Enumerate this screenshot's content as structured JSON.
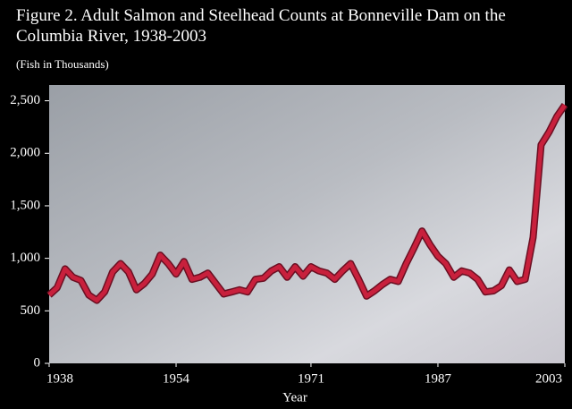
{
  "chart_data": {
    "type": "line",
    "title": "Figure 2. Adult Salmon and Steelhead Counts at Bonneville Dam on the Columbia River, 1938-2003",
    "subtitle": "(Fish in Thousands)",
    "x_label": "Year",
    "x": [
      1938,
      1939,
      1940,
      1941,
      1942,
      1943,
      1944,
      1945,
      1946,
      1947,
      1948,
      1949,
      1950,
      1951,
      1952,
      1953,
      1954,
      1955,
      1956,
      1957,
      1958,
      1959,
      1960,
      1961,
      1962,
      1963,
      1964,
      1965,
      1966,
      1967,
      1968,
      1969,
      1970,
      1971,
      1972,
      1973,
      1974,
      1975,
      1976,
      1977,
      1978,
      1979,
      1980,
      1981,
      1982,
      1983,
      1984,
      1985,
      1986,
      1987,
      1988,
      1989,
      1990,
      1991,
      1992,
      1993,
      1994,
      1995,
      1996,
      1997,
      1998,
      1999,
      2000,
      2001,
      2002,
      2003
    ],
    "values": [
      650,
      720,
      900,
      820,
      790,
      650,
      600,
      680,
      870,
      950,
      870,
      700,
      760,
      850,
      1030,
      950,
      850,
      970,
      800,
      820,
      860,
      760,
      660,
      680,
      700,
      680,
      800,
      810,
      880,
      920,
      820,
      920,
      830,
      920,
      880,
      860,
      800,
      880,
      950,
      800,
      640,
      690,
      750,
      800,
      780,
      950,
      1100,
      1260,
      1130,
      1020,
      950,
      820,
      880,
      860,
      800,
      680,
      690,
      740,
      890,
      780,
      800,
      1200,
      2080,
      2200,
      2350,
      2460
    ],
    "color": "#c8203c",
    "xlim": [
      1938,
      2003
    ],
    "xticks": [
      1938,
      1954,
      1971,
      1987,
      2003
    ],
    "ylim": [
      0,
      2650
    ],
    "yticks": [
      0,
      500,
      {
        "value": 1000,
        "label": "1,000"
      },
      {
        "value": 1500,
        "label": "1,500"
      },
      {
        "value": 2000,
        "label": "2,000"
      },
      {
        "value": 2500,
        "label": "2,500"
      }
    ]
  }
}
